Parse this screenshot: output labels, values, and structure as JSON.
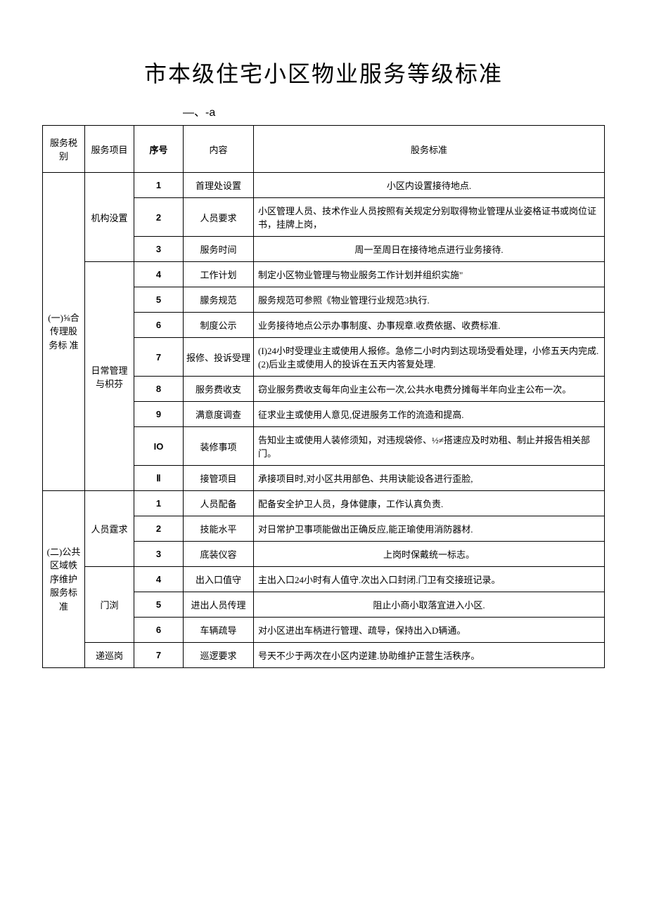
{
  "title": "市本级住宅小区物业服务等级标准",
  "subtitle": "—、-a",
  "headers": {
    "level": "服务税别",
    "project": "服务项目",
    "seq": "序号",
    "content": "内容",
    "standard": "股务标准"
  },
  "section1": {
    "level": "(一)⅝合传理股务标\n准",
    "group1": {
      "name": "机构没置",
      "rows": [
        {
          "seq": "1",
          "content": "首理处设置",
          "standard": "小区内设置接待地点."
        },
        {
          "seq": "2",
          "content": "人员要求",
          "standard": "小区管理人员、技术作业人员按照有关规定分别取得物业管理从业姿格证书或岗位证书，挂牌上岗，"
        },
        {
          "seq": "3",
          "content": "服务时间",
          "standard": "周一至周日在接待地点进行业务接待."
        }
      ]
    },
    "group2": {
      "name": "日常管理与枳芬",
      "rows": [
        {
          "seq": "4",
          "content": "工作计划",
          "standard": "制定小区物业管理与物业服务工作计划并组织实施\""
        },
        {
          "seq": "5",
          "content": "朦务规范",
          "standard": "服务规范可参照《物业管理行业规范3执行."
        },
        {
          "seq": "6",
          "content": "制度公示",
          "standard": "业务接待地点公示办事制度、办事规章.收费依据、收费标准."
        },
        {
          "seq": "7",
          "content": "报修、投诉受理",
          "standard": "(I)24小时受理业主或使用人报修。急修二小时内到达现场受看处理，小修五天内完成.\n(2)后业主或使用人的投诉在五天内答复处理."
        },
        {
          "seq": "8",
          "content": "服务费收支",
          "standard": "窃业服务费收支每年向业主公布一次,公共水电费分摊每半年向业主公布一次。"
        },
        {
          "seq": "9",
          "content": "满意度调查",
          "standard": "征求业主或使用人意见,促进服务工作的流造和提高."
        },
        {
          "seq": "IO",
          "content": "装修事项",
          "standard": "告知业主或使用人装修须知，对违规袋修、½≠搭速应及时劝租、制止并报告相关部门。"
        },
        {
          "seq": "Ⅱ",
          "content": "接管项目",
          "standard": "承接项目时,对小区共用部色、共用诀能设各进行歪脸,"
        }
      ]
    }
  },
  "section2": {
    "level": "(二)公共区域帙序维护服务标准",
    "group1": {
      "name": "人员霆求",
      "rows": [
        {
          "seq": "1",
          "content": "人员配备",
          "standard": "配备安全护卫人员，身体健康，工作认真负责."
        },
        {
          "seq": "2",
          "content": "技能水平",
          "standard": "对日常护卫事项能做出正确反应,能正瑜使用消防器材."
        },
        {
          "seq": "3",
          "content": "底装仪容",
          "standard": "上岗时保戴统一标志。"
        }
      ]
    },
    "group2": {
      "name": "门浏",
      "rows": [
        {
          "seq": "4",
          "content": "出入口值守",
          "standard": "主出入口24小时有人值守.次出入口封闭.门卫有交接班记录。"
        },
        {
          "seq": "5",
          "content": "进出人员传理",
          "standard": "阻止小商小取落宜进入小区."
        },
        {
          "seq": "6",
          "content": "车辆疏导",
          "standard": "对小区进出车柄进行管理、疏导，保持出入D辆通。"
        }
      ]
    },
    "group3": {
      "name": "递巡岗",
      "rows": [
        {
          "seq": "7",
          "content": "巡逻要求",
          "standard": "号天不少于两次在小区内逆建.协助维护正营生活秩序。"
        }
      ]
    }
  }
}
